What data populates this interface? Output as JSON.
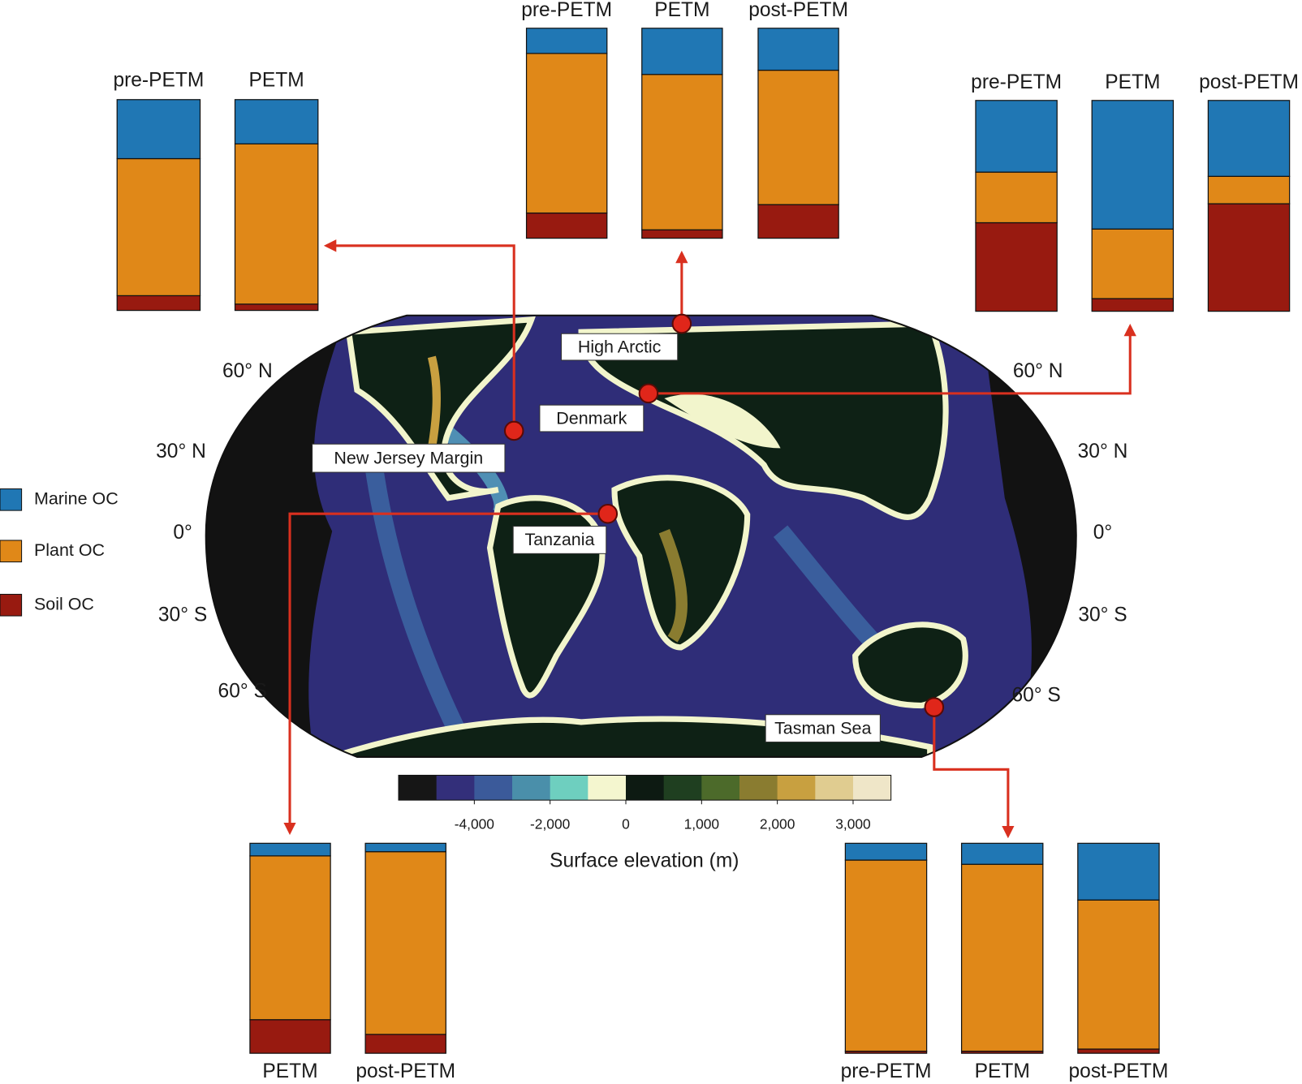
{
  "chart_data": [
    {
      "type": "stacked_bar",
      "location": "New Jersey Margin",
      "categories": [
        "pre-PETM",
        "PETM"
      ],
      "ylim": [
        0,
        100
      ],
      "series": [
        {
          "values": [
            28,
            21
          ]
        },
        {
          "values": [
            65,
            76
          ]
        },
        {
          "values": [
            7,
            3
          ]
        }
      ]
    },
    {
      "type": "stacked_bar",
      "location": "High Arctic",
      "categories": [
        "pre-PETM",
        "PETM",
        "post-PETM"
      ],
      "ylim": [
        0,
        100
      ],
      "series": [
        {
          "values": [
            12,
            22,
            20
          ]
        },
        {
          "values": [
            76,
            74,
            64
          ]
        },
        {
          "values": [
            12,
            4,
            16
          ]
        }
      ]
    },
    {
      "type": "stacked_bar",
      "location": "Denmark",
      "categories": [
        "pre-PETM",
        "PETM",
        "post-PETM"
      ],
      "ylim": [
        0,
        100
      ],
      "series": [
        {
          "values": [
            34,
            61,
            36
          ]
        },
        {
          "values": [
            24,
            33,
            13
          ]
        },
        {
          "values": [
            42,
            6,
            51
          ]
        }
      ]
    },
    {
      "type": "stacked_bar",
      "location": "Tanzania",
      "categories": [
        "PETM",
        "post-PETM"
      ],
      "ylim": [
        0,
        100
      ],
      "series": [
        {
          "values": [
            6,
            4
          ]
        },
        {
          "values": [
            78,
            87
          ]
        },
        {
          "values": [
            16,
            9
          ]
        }
      ]
    },
    {
      "type": "stacked_bar",
      "location": "Tasman Sea",
      "categories": [
        "pre-PETM",
        "PETM",
        "post-PETM"
      ],
      "ylim": [
        0,
        100
      ],
      "series": [
        {
          "values": [
            8,
            10,
            27
          ]
        },
        {
          "values": [
            91,
            89,
            71
          ]
        },
        {
          "values": [
            1,
            1,
            2
          ]
        }
      ]
    }
  ],
  "legend": [
    {
      "name": "Marine OC",
      "color": "#2077b4"
    },
    {
      "name": "Plant OC",
      "color": "#e08818"
    },
    {
      "name": "Soil OC",
      "color": "#981a10"
    }
  ],
  "map": {
    "lat_labels": [
      "60° N",
      "30° N",
      "0°",
      "30° S",
      "60° S"
    ]
  },
  "colorbar": {
    "label": "Surface elevation (m)",
    "bounds": [
      -6000,
      -5000,
      -4000,
      -3000,
      -2000,
      -1000,
      0,
      500,
      1000,
      1500,
      2000,
      2500,
      3000,
      3500
    ],
    "colors": [
      "#161616",
      "#332f7a",
      "#3b5a9a",
      "#4a8faa",
      "#6ecfbf",
      "#f4f6cf",
      "#0d1a12",
      "#1f3f20",
      "#4c6a2a",
      "#8a7c30",
      "#c8a040",
      "#e0cc90",
      "#efe6c8"
    ],
    "ticks": [
      {
        "value": -4000,
        "label": "-4,000"
      },
      {
        "value": -2000,
        "label": "-2,000"
      },
      0,
      {
        "value": 1000,
        "label": "1,000"
      },
      {
        "value": 2000,
        "label": "2,000"
      },
      {
        "value": 3000,
        "label": "3,000"
      }
    ]
  }
}
